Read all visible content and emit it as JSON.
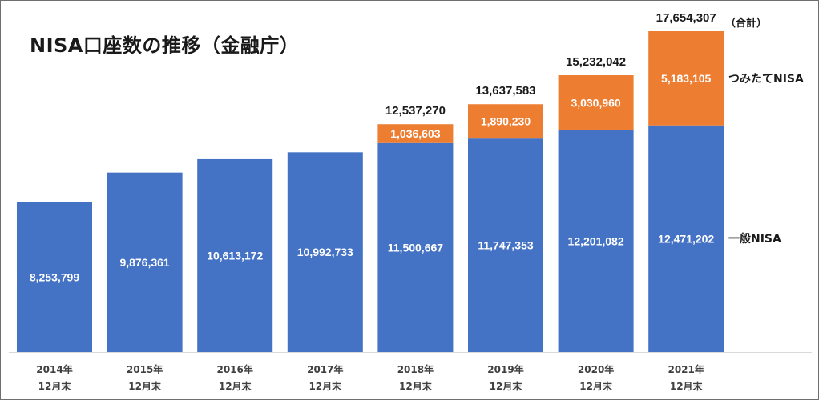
{
  "title": "NISA口座数の推移（金融庁）",
  "chart_data": {
    "type": "bar",
    "stacked": true,
    "title": "NISA口座数の推移（金融庁）",
    "categories": [
      [
        "2014年",
        "12月末"
      ],
      [
        "2015年",
        "12月末"
      ],
      [
        "2016年",
        "12月末"
      ],
      [
        "2017年",
        "12月末"
      ],
      [
        "2018年",
        "12月末"
      ],
      [
        "2019年",
        "12月末"
      ],
      [
        "2020年",
        "12月末"
      ],
      [
        "2021年",
        "12月末"
      ]
    ],
    "series": [
      {
        "name": "一般NISA",
        "color": "#4472c4",
        "values": [
          8253799,
          9876361,
          10613172,
          10992733,
          11500667,
          11747353,
          12201082,
          12471202
        ],
        "labels": [
          "8,253,799",
          "9,876,361",
          "10,613,172",
          "10,992,733",
          "11,500,667",
          "11,747,353",
          "12,201,082",
          "12,471,202"
        ]
      },
      {
        "name": "つみたてNISA",
        "color": "#ed7d31",
        "values": [
          null,
          null,
          null,
          null,
          1036603,
          1890230,
          3030960,
          5183105
        ],
        "labels": [
          "",
          "",
          "",
          "",
          "1,036,603",
          "1,890,230",
          "3,030,960",
          "5,183,105"
        ]
      }
    ],
    "totals": [
      "",
      "",
      "",
      "",
      "12,537,270",
      "13,637,583",
      "15,232,042",
      "17,654,307"
    ],
    "total_suffix": "（合計）",
    "ylim": [
      0,
      17654307
    ],
    "grid": false,
    "legend": "right, series names beside last bar"
  }
}
